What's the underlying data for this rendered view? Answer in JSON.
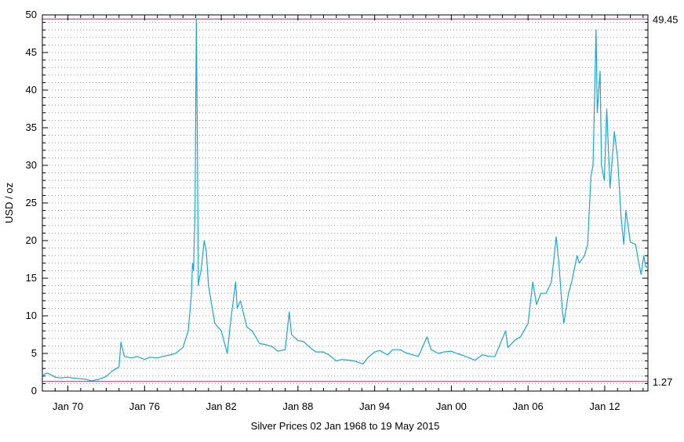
{
  "chart_data": {
    "type": "line",
    "title": "",
    "xlabel": "Silver Prices 02 Jan 1968 to 19 May 2015",
    "ylabel": "USD / oz",
    "ylim": [
      0,
      50
    ],
    "xlim": [
      "1968-01-02",
      "2015-05-19"
    ],
    "grid": true,
    "line_color": "#1aa6d8",
    "ref_line_color": "#8c3a6a",
    "yticks": [
      0,
      5,
      10,
      15,
      20,
      25,
      30,
      35,
      40,
      45,
      50
    ],
    "ytick_labels": [
      "0",
      "5",
      "10",
      "15",
      "20",
      "25",
      "30",
      "35",
      "40",
      "45",
      "50"
    ],
    "xticks": [
      {
        "label": "Jan 70",
        "date": "1970-01-01"
      },
      {
        "label": "Jan 76",
        "date": "1976-01-01"
      },
      {
        "label": "Jan 82",
        "date": "1982-01-01"
      },
      {
        "label": "Jan 88",
        "date": "1988-01-01"
      },
      {
        "label": "Jan 94",
        "date": "1994-01-01"
      },
      {
        "label": "Jan 00",
        "date": "2000-01-01"
      },
      {
        "label": "Jan 06",
        "date": "2006-01-01"
      },
      {
        "label": "Jan 12",
        "date": "2012-01-01"
      }
    ],
    "max_label": "49.45",
    "min_label": "1.27",
    "max_value": 49.45,
    "min_value": 1.27,
    "series": [
      {
        "x": [
          "1968-01-02",
          "1968-06-01",
          "1969-01-01",
          "1969-06-01",
          "1970-01-01",
          "1970-06-01",
          "1971-01-01",
          "1971-06-01",
          "1971-11-01",
          "1972-06-01",
          "1973-01-01",
          "1973-06-01",
          "1974-01-01",
          "1974-02-26",
          "1974-06-01",
          "1975-01-01",
          "1975-06-01",
          "1976-01-01",
          "1976-06-01",
          "1977-01-01",
          "1977-06-01",
          "1978-01-01",
          "1978-06-01",
          "1979-01-01",
          "1979-06-01",
          "1979-09-01",
          "1979-10-01",
          "1979-11-01",
          "1979-12-15",
          "1980-01-18",
          "1980-02-15",
          "1980-03-15",
          "1980-04-15",
          "1980-06-01",
          "1980-09-01",
          "1980-11-01",
          "1981-01-01",
          "1981-04-01",
          "1981-07-01",
          "1981-10-01",
          "1982-01-01",
          "1982-06-21",
          "1982-10-01",
          "1983-02-15",
          "1983-04-01",
          "1983-07-01",
          "1984-01-01",
          "1984-06-01",
          "1985-01-01",
          "1985-06-01",
          "1986-01-01",
          "1986-06-01",
          "1987-01-01",
          "1987-04-26",
          "1987-07-01",
          "1988-01-01",
          "1988-06-01",
          "1989-01-01",
          "1989-06-01",
          "1990-01-01",
          "1990-06-01",
          "1991-01-01",
          "1991-06-01",
          "1992-01-01",
          "1992-06-01",
          "1993-02-01",
          "1993-07-01",
          "1994-01-01",
          "1994-06-01",
          "1995-01-01",
          "1995-06-01",
          "1996-01-01",
          "1996-06-01",
          "1997-01-01",
          "1997-06-01",
          "1998-02-05",
          "1998-06-01",
          "1999-01-01",
          "1999-06-01",
          "2000-01-01",
          "2000-06-01",
          "2001-01-01",
          "2001-11-01",
          "2002-06-01",
          "2003-01-01",
          "2003-06-01",
          "2004-04-01",
          "2004-06-01",
          "2005-01-01",
          "2005-06-01",
          "2006-01-01",
          "2006-05-15",
          "2006-09-01",
          "2007-01-01",
          "2007-06-01",
          "2007-11-01",
          "2008-03-15",
          "2008-06-01",
          "2008-09-01",
          "2008-10-20",
          "2009-03-01",
          "2009-06-01",
          "2009-11-01",
          "2010-01-01",
          "2010-06-01",
          "2010-09-01",
          "2010-12-01",
          "2011-02-01",
          "2011-04-28",
          "2011-06-01",
          "2011-08-20",
          "2011-10-01",
          "2011-12-20",
          "2012-02-28",
          "2012-06-01",
          "2012-10-01",
          "2013-01-01",
          "2013-04-15",
          "2013-06-28",
          "2013-08-28",
          "2014-01-01",
          "2014-06-01",
          "2014-09-01",
          "2014-11-05",
          "2015-01-20",
          "2015-03-15",
          "2015-05-19"
        ],
        "y": [
          2.15,
          2.4,
          1.85,
          1.75,
          1.85,
          1.72,
          1.65,
          1.55,
          1.35,
          1.55,
          1.95,
          2.6,
          3.2,
          6.5,
          4.6,
          4.4,
          4.6,
          4.2,
          4.5,
          4.4,
          4.6,
          4.8,
          5.0,
          5.8,
          8.0,
          13.0,
          17.0,
          16.0,
          25.0,
          49.45,
          35.0,
          14.0,
          15.0,
          16.0,
          20.0,
          18.5,
          14.0,
          11.5,
          9.0,
          8.5,
          8.0,
          5.0,
          9.5,
          14.5,
          11.0,
          12.0,
          8.5,
          8.0,
          6.3,
          6.2,
          5.9,
          5.3,
          5.5,
          10.5,
          7.5,
          6.7,
          6.6,
          5.7,
          5.2,
          5.2,
          4.8,
          4.0,
          4.2,
          4.1,
          4.0,
          3.6,
          4.5,
          5.2,
          5.4,
          4.8,
          5.5,
          5.5,
          5.1,
          4.8,
          4.6,
          7.2,
          5.5,
          5.0,
          5.2,
          5.3,
          5.0,
          4.7,
          4.1,
          4.8,
          4.6,
          4.6,
          8.0,
          5.8,
          6.8,
          7.2,
          9.0,
          14.5,
          11.5,
          13.0,
          13.0,
          14.5,
          20.5,
          17.0,
          11.0,
          9.0,
          13.0,
          14.5,
          18.0,
          17.0,
          18.0,
          19.5,
          28.5,
          30.0,
          48.0,
          37.0,
          42.5,
          30.0,
          28.0,
          37.5,
          27.0,
          34.5,
          31.0,
          23.0,
          19.5,
          24.0,
          19.8,
          19.5,
          17.0,
          15.5,
          18.0,
          16.5,
          16.5
        ]
      }
    ]
  }
}
